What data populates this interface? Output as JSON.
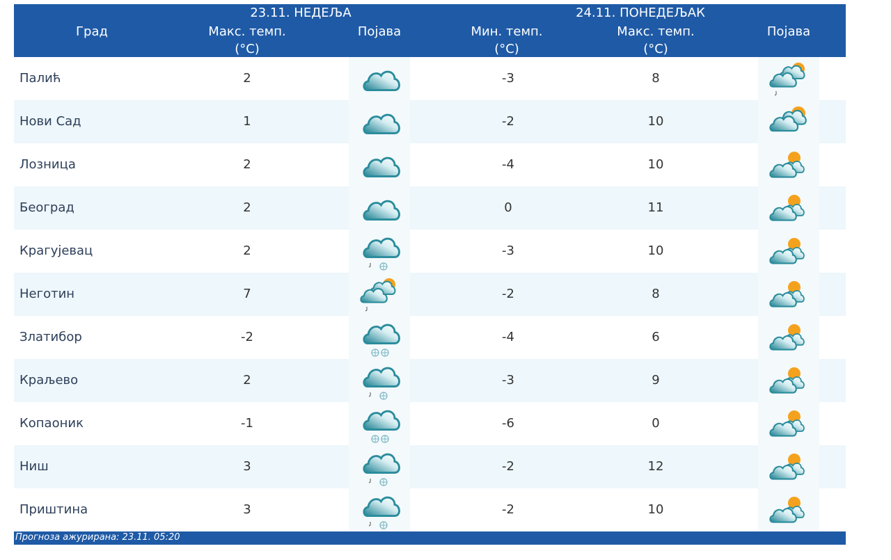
{
  "header": {
    "city": "Град",
    "day1": "23.11. НЕДЕЉА",
    "day2": "24.11. ПОНЕДЕЉАК",
    "max_temp": "Макс. темп.",
    "min_temp": "Мин. темп.",
    "unit": "(°C)",
    "phenomenon": "Појава"
  },
  "rows": [
    {
      "city": "Палић",
      "d1_max": "2",
      "d1_icon": "cloudy",
      "d2_min": "-3",
      "d2_max": "8",
      "d2_icon": "partly-cloudy-rain"
    },
    {
      "city": "Нови Сад",
      "d1_max": "1",
      "d1_icon": "cloudy",
      "d2_min": "-2",
      "d2_max": "10",
      "d2_icon": "partly-cloudy-dark"
    },
    {
      "city": "Лозница",
      "d1_max": "2",
      "d1_icon": "cloudy",
      "d2_min": "-4",
      "d2_max": "10",
      "d2_icon": "partly-cloudy"
    },
    {
      "city": "Београд",
      "d1_max": "2",
      "d1_icon": "cloudy",
      "d2_min": "0",
      "d2_max": "11",
      "d2_icon": "partly-cloudy"
    },
    {
      "city": "Крагујевац",
      "d1_max": "2",
      "d1_icon": "cloud-rain-snow",
      "d2_min": "-3",
      "d2_max": "10",
      "d2_icon": "partly-cloudy"
    },
    {
      "city": "Неготин",
      "d1_max": "7",
      "d1_icon": "partly-cloudy-rain",
      "d2_min": "-2",
      "d2_max": "8",
      "d2_icon": "partly-cloudy"
    },
    {
      "city": "Златибор",
      "d1_max": "-2",
      "d1_icon": "cloud-snow",
      "d2_min": "-4",
      "d2_max": "6",
      "d2_icon": "partly-cloudy"
    },
    {
      "city": "Краљево",
      "d1_max": "2",
      "d1_icon": "cloud-rain-snow",
      "d2_min": "-3",
      "d2_max": "9",
      "d2_icon": "partly-cloudy"
    },
    {
      "city": "Копаоник",
      "d1_max": "-1",
      "d1_icon": "cloud-snow",
      "d2_min": "-6",
      "d2_max": "0",
      "d2_icon": "partly-cloudy"
    },
    {
      "city": "Ниш",
      "d1_max": "3",
      "d1_icon": "cloud-rain-snow",
      "d2_min": "-2",
      "d2_max": "12",
      "d2_icon": "partly-cloudy"
    },
    {
      "city": "Приштина",
      "d1_max": "3",
      "d1_icon": "cloud-rain-snow",
      "d2_min": "-2",
      "d2_max": "10",
      "d2_icon": "partly-cloudy"
    }
  ],
  "footer": {
    "updated": "Прогноза ажурирана:  23.11. 05:20"
  },
  "colors": {
    "header_bg": "#1f5aa6",
    "alt_row": "#eef7fb",
    "cloud": "#2a8c9c",
    "sun": "#f4a21e"
  }
}
